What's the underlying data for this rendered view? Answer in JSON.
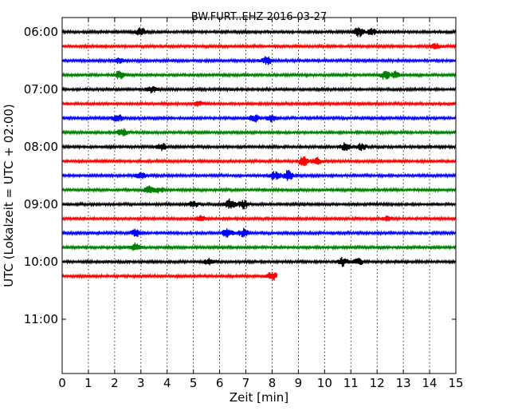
{
  "chart_data": {
    "type": "line",
    "title": "BW.FURT..EHZ 2016-03-27",
    "xlabel": "Zeit  [min]",
    "ylabel": "UTC (Lokalzeit = UTC + 02:00)",
    "xlim": [
      0,
      15
    ],
    "x_ticks": [
      "0",
      "1",
      "2",
      "3",
      "4",
      "5",
      "6",
      "7",
      "8",
      "9",
      "10",
      "11",
      "12",
      "13",
      "14",
      "15"
    ],
    "y_ticks": [
      "06:00",
      "07:00",
      "08:00",
      "09:00",
      "10:00",
      "11:00"
    ],
    "grid": "vertical dotted",
    "trace_minutes": 15,
    "trace_colors": [
      "#000000",
      "#ff0000",
      "#0000ff",
      "#008000"
    ],
    "traces": [
      {
        "start": "06:00",
        "end_min": 15,
        "events": [
          [
            3.0,
            5
          ],
          [
            11.3,
            6
          ],
          [
            11.8,
            4
          ]
        ]
      },
      {
        "start": "06:15",
        "end_min": 15,
        "events": [
          [
            14.2,
            3
          ]
        ]
      },
      {
        "start": "06:30",
        "end_min": 15,
        "events": [
          [
            2.2,
            4
          ],
          [
            7.8,
            5
          ]
        ]
      },
      {
        "start": "06:45",
        "end_min": 15,
        "events": [
          [
            2.2,
            5
          ],
          [
            12.3,
            5
          ],
          [
            12.7,
            4
          ]
        ]
      },
      {
        "start": "07:00",
        "end_min": 15,
        "events": [
          [
            3.4,
            4
          ]
        ]
      },
      {
        "start": "07:15",
        "end_min": 15,
        "events": [
          [
            5.2,
            3
          ]
        ]
      },
      {
        "start": "07:30",
        "end_min": 15,
        "events": [
          [
            2.1,
            5
          ],
          [
            7.3,
            5
          ],
          [
            8.0,
            4
          ]
        ]
      },
      {
        "start": "07:45",
        "end_min": 15,
        "events": [
          [
            2.3,
            5
          ]
        ]
      },
      {
        "start": "08:00",
        "end_min": 15,
        "events": [
          [
            3.8,
            4
          ],
          [
            10.8,
            5
          ],
          [
            11.4,
            4
          ]
        ]
      },
      {
        "start": "08:15",
        "end_min": 15,
        "events": [
          [
            9.2,
            6
          ],
          [
            9.7,
            4
          ]
        ]
      },
      {
        "start": "08:30",
        "end_min": 15,
        "events": [
          [
            3.0,
            4
          ],
          [
            8.1,
            5
          ],
          [
            8.6,
            6
          ]
        ]
      },
      {
        "start": "08:45",
        "end_min": 15,
        "events": [
          [
            3.3,
            4
          ],
          [
            3.7,
            3
          ]
        ]
      },
      {
        "start": "09:00",
        "end_min": 15,
        "events": [
          [
            5.0,
            4
          ],
          [
            6.4,
            6
          ],
          [
            6.9,
            5
          ]
        ]
      },
      {
        "start": "09:15",
        "end_min": 15,
        "events": [
          [
            5.3,
            4
          ],
          [
            12.4,
            3
          ]
        ]
      },
      {
        "start": "09:30",
        "end_min": 15,
        "events": [
          [
            2.8,
            4
          ],
          [
            6.3,
            6
          ],
          [
            6.9,
            5
          ]
        ]
      },
      {
        "start": "09:45",
        "end_min": 15,
        "events": [
          [
            2.8,
            5
          ]
        ]
      },
      {
        "start": "10:00",
        "end_min": 15,
        "events": [
          [
            5.6,
            4
          ],
          [
            10.7,
            5
          ],
          [
            11.3,
            4
          ]
        ]
      },
      {
        "start": "10:15",
        "end_min": 8.2,
        "events": [
          [
            8.0,
            6
          ]
        ]
      }
    ]
  }
}
